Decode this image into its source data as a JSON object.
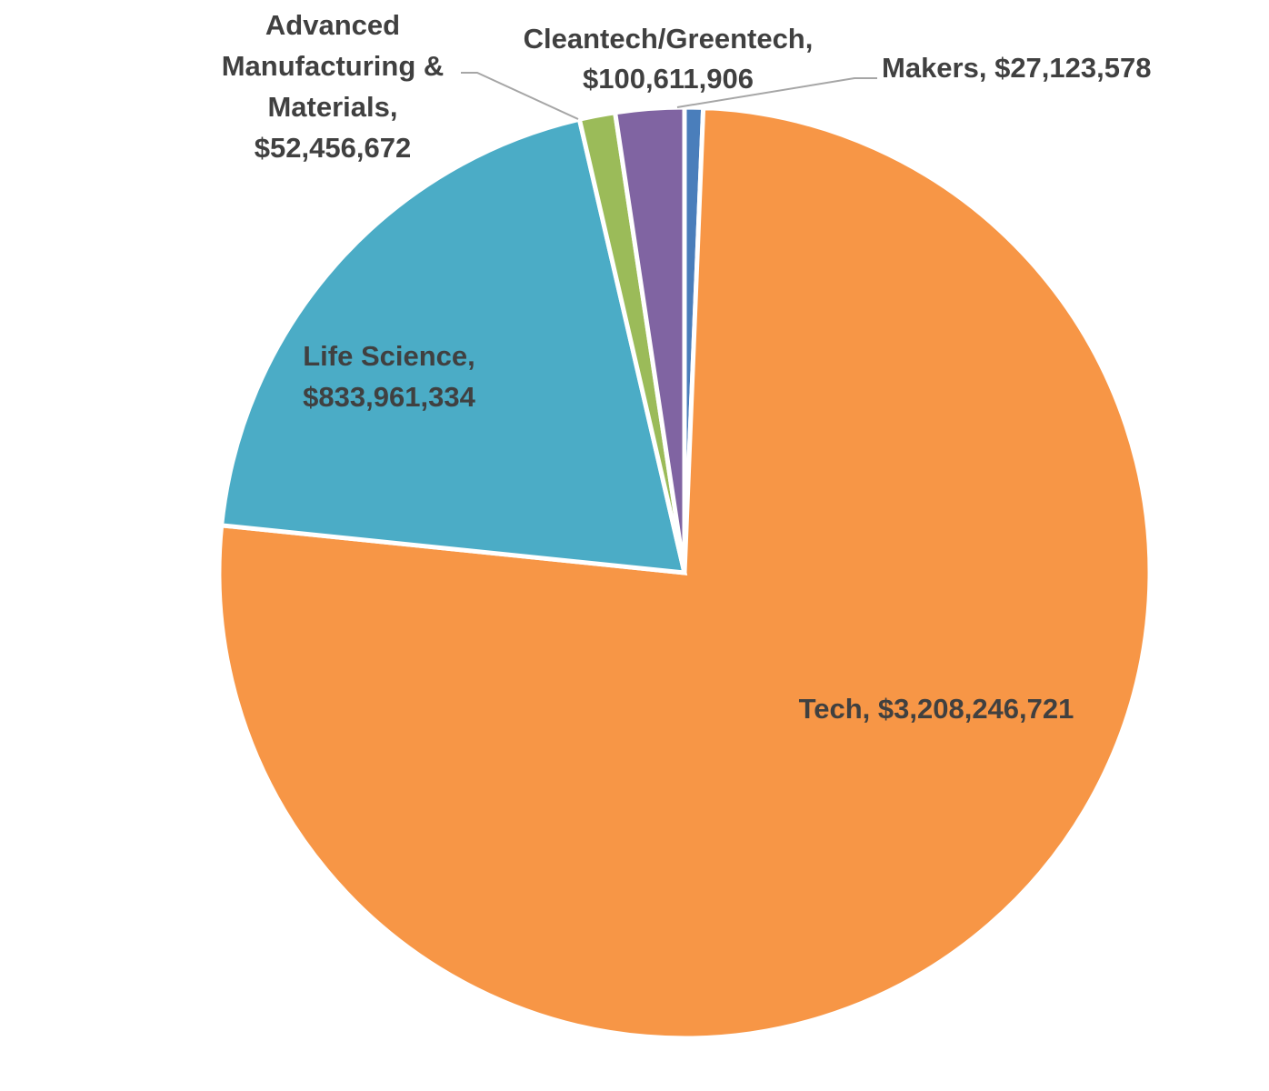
{
  "chart_data": {
    "type": "pie",
    "slices": [
      {
        "name": "Makers",
        "value": 27123578,
        "color": "#4a7ebb",
        "label_lines": [
          "Makers, $27,123,578"
        ],
        "label_anchor": "start",
        "leader": true
      },
      {
        "name": "Tech",
        "value": 3208246721,
        "color": "#f79646",
        "label_lines": [
          "Tech, $3,208,246,721"
        ],
        "label_anchor": "middle",
        "leader": false
      },
      {
        "name": "Life Science",
        "value": 833961334,
        "color": "#4bacc6",
        "label_lines": [
          "Life Science,",
          "$833,961,334"
        ],
        "label_anchor": "middle",
        "leader": false
      },
      {
        "name": "Advanced Manufacturing & Materials",
        "value": 52456672,
        "color": "#9bbb59",
        "label_lines": [
          "Advanced",
          "Manufacturing &",
          "Materials,",
          "$52,456,672"
        ],
        "label_anchor": "middle",
        "leader": true
      },
      {
        "name": "Cleantech/Greentech",
        "value": 100611906,
        "color": "#8064a2",
        "label_lines": [
          "Cleantech/Greentech,",
          "$100,611,906"
        ],
        "label_anchor": "middle",
        "leader": true
      }
    ],
    "start_angle": "12 o'clock",
    "direction": "clockwise",
    "legend": "none",
    "title": ""
  }
}
